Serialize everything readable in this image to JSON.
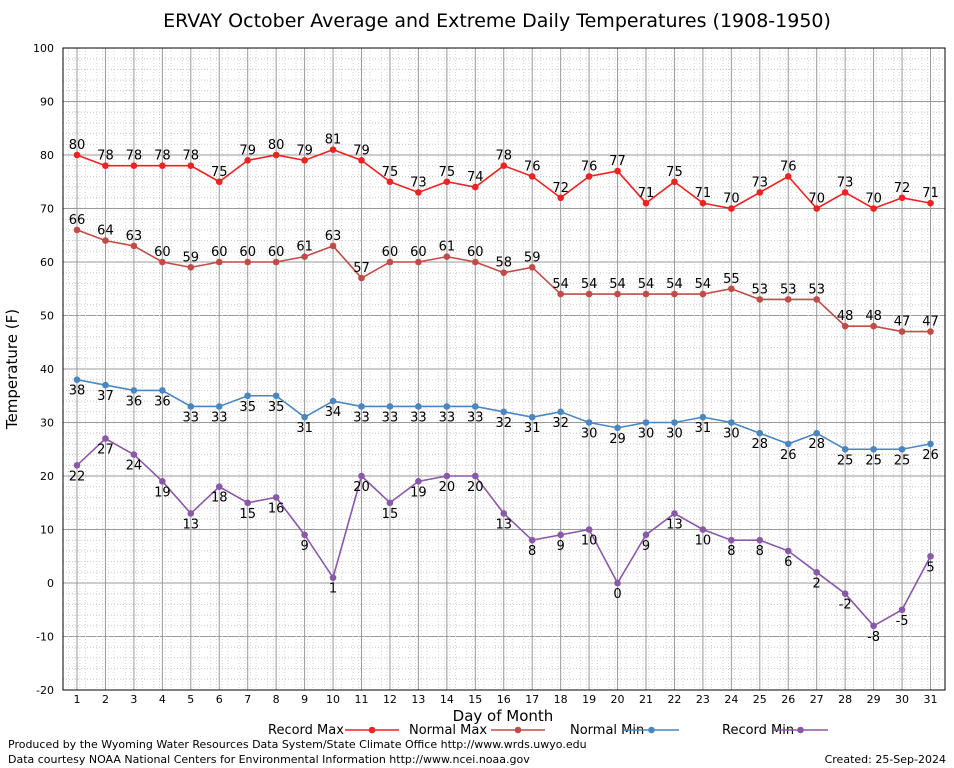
{
  "chart_data": {
    "type": "line",
    "title": "ERVAY October Average and Extreme Daily Temperatures (1908-1950)",
    "xlabel": "Day of Month",
    "ylabel": "Temperature (F)",
    "ylim": [
      -20,
      100
    ],
    "yticks": [
      "100",
      "90",
      "80",
      "70",
      "60",
      "50",
      "40",
      "30",
      "20",
      "10",
      "0",
      "-10",
      "-20"
    ],
    "categories": [
      "1",
      "2",
      "3",
      "4",
      "5",
      "6",
      "7",
      "8",
      "9",
      "10",
      "11",
      "12",
      "13",
      "14",
      "15",
      "16",
      "17",
      "18",
      "19",
      "20",
      "21",
      "22",
      "23",
      "24",
      "25",
      "26",
      "27",
      "28",
      "29",
      "30",
      "31"
    ],
    "grid": true,
    "legend_position": "bottom",
    "series": [
      {
        "name": "Record Max",
        "color": "#ee2222",
        "values": [
          80,
          78,
          78,
          78,
          78,
          75,
          79,
          80,
          79,
          81,
          79,
          75,
          73,
          75,
          74,
          78,
          76,
          72,
          76,
          77,
          71,
          75,
          71,
          70,
          73,
          76,
          70,
          73,
          70,
          72,
          71
        ]
      },
      {
        "name": "Normal Max",
        "color": "#c14b47",
        "values": [
          66,
          64,
          63,
          60,
          59,
          60,
          60,
          60,
          61,
          63,
          57,
          60,
          60,
          61,
          60,
          58,
          59,
          54,
          54,
          54,
          54,
          54,
          54,
          55,
          53,
          53,
          53,
          48,
          48,
          47,
          47
        ]
      },
      {
        "name": "Normal Min",
        "color": "#4a86c0",
        "values": [
          38,
          37,
          36,
          36,
          33,
          33,
          35,
          35,
          31,
          34,
          33,
          33,
          33,
          33,
          33,
          32,
          31,
          32,
          30,
          29,
          30,
          30,
          31,
          30,
          28,
          26,
          28,
          25,
          25,
          25,
          26
        ]
      },
      {
        "name": "Record Min",
        "color": "#8a58a8",
        "values": [
          22,
          27,
          24,
          19,
          13,
          18,
          15,
          16,
          9,
          1,
          20,
          15,
          19,
          20,
          20,
          13,
          8,
          9,
          10,
          0,
          9,
          13,
          10,
          8,
          8,
          6,
          2,
          -2,
          -8,
          -5,
          5
        ]
      }
    ]
  },
  "footer": {
    "produced": "Produced by the Wyoming Water Resources Data System/State Climate Office http://www.wrds.uwyo.edu",
    "courtesy": "Data courtesy NOAA National Centers for Environmental Information http://www.ncei.noaa.gov",
    "created": "Created:  25-Sep-2024"
  }
}
